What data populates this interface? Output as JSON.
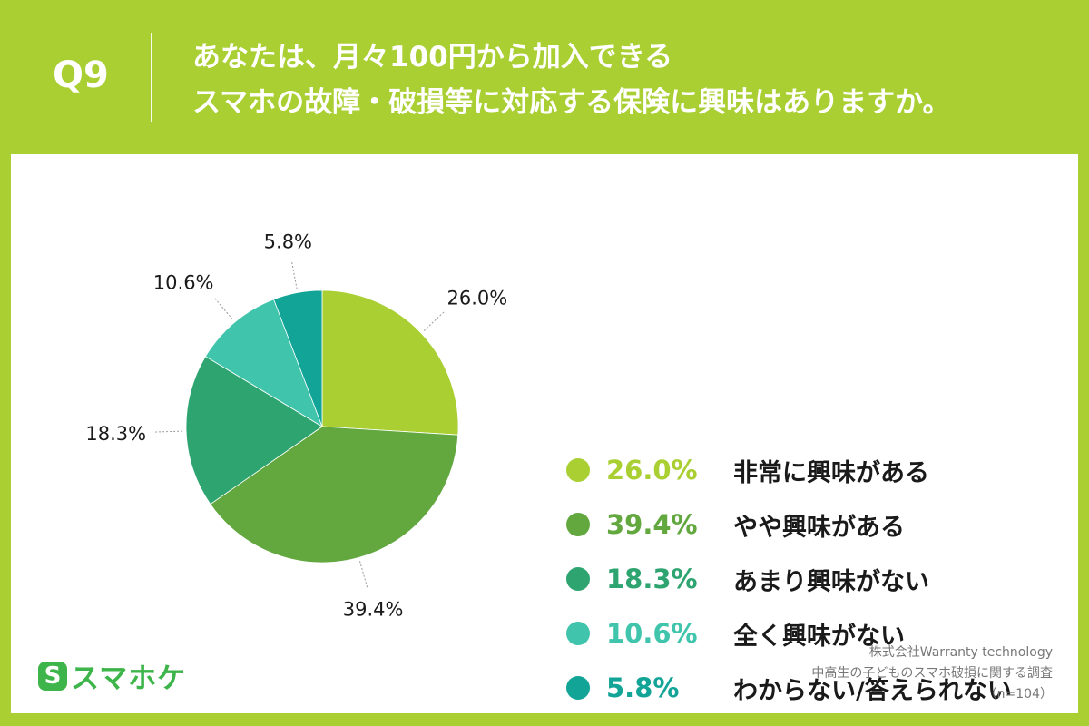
{
  "header": {
    "question_number": "Q9",
    "question_line1": "あなたは、月々100円から加入できる",
    "question_line2": "スマホの故障・破損等に対応する保険に興味はありますか。"
  },
  "chart_data": {
    "type": "pie",
    "categories": [
      "非常に興味がある",
      "やや興味がある",
      "あまり興味がない",
      "全く興味がない",
      "わからない/答えられない"
    ],
    "values": [
      26.0,
      39.4,
      18.3,
      10.6,
      5.8
    ],
    "value_labels": [
      "26.0%",
      "39.4%",
      "18.3%",
      "10.6%",
      "5.8%"
    ],
    "colors": [
      "#a9cf33",
      "#62a83f",
      "#2ea571",
      "#40c4ab",
      "#12a497"
    ],
    "legend_text_colors": [
      "#a9cf33",
      "#62a83f",
      "#2ea571",
      "#40c4ab",
      "#12a497"
    ],
    "start_angle": "top, clockwise",
    "legend_placement": "right"
  },
  "legend": {
    "items": [
      {
        "value": "26.0%",
        "label": "非常に興味がある"
      },
      {
        "value": "39.4%",
        "label": "やや興味がある"
      },
      {
        "value": "18.3%",
        "label": "あまり興味がない"
      },
      {
        "value": "10.6%",
        "label": "全く興味がない"
      },
      {
        "value": "5.8%",
        "label": "わからない/答えられない"
      }
    ]
  },
  "footer": {
    "logo_mark": "S",
    "logo_text": "スマホケ",
    "source_line1": "株式会社Warranty technology",
    "source_line2": "中高生の子どものスマホ破損に関する調査",
    "source_line3": "（n=104）"
  }
}
